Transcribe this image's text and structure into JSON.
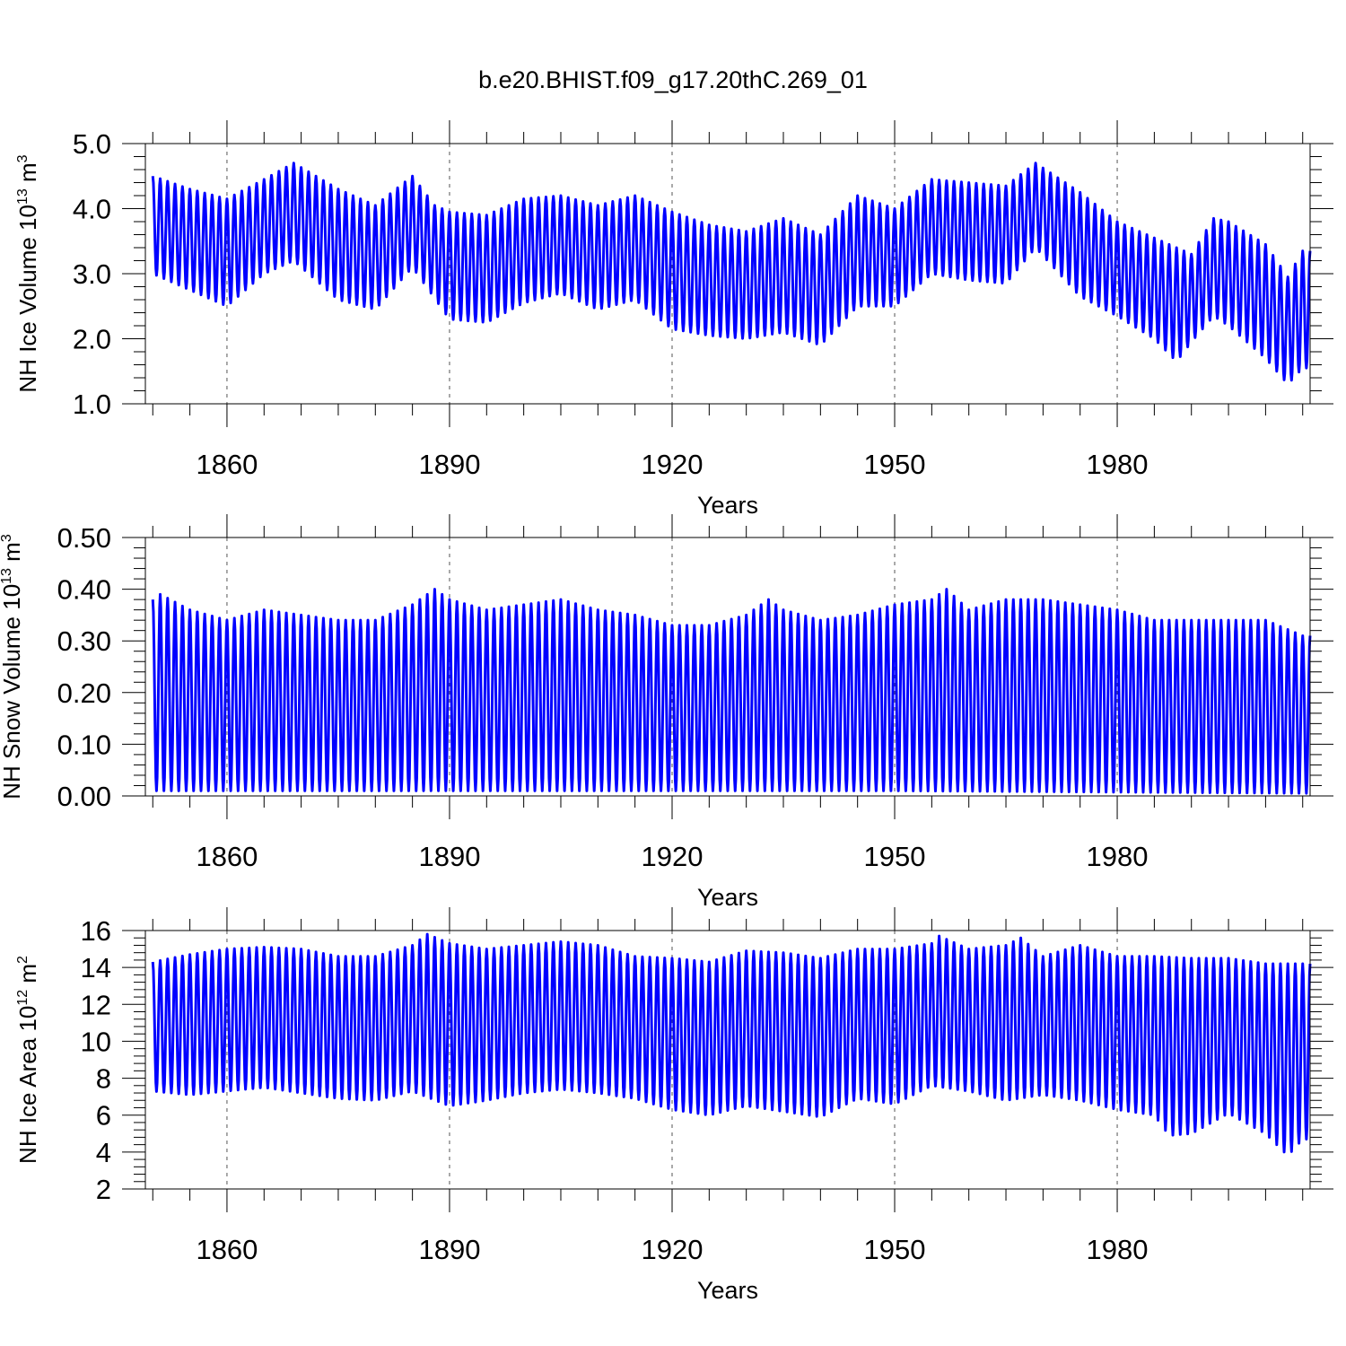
{
  "title": "b.e20.BHIST.f09_g17.20thC.269_01",
  "colors": {
    "series": "#0000ff",
    "axes": "#000000",
    "grid": "#555555",
    "background": "#ffffff"
  },
  "chart_data": [
    {
      "type": "line",
      "x_start": 1850.0,
      "x_end": 2006.0,
      "samples_per_year": 12,
      "xlim": [
        1849.0,
        2006.0
      ],
      "xticks": [
        1860,
        1890,
        1920,
        1950,
        1980
      ],
      "xlabel": "Years",
      "ylabel": {
        "text": "NH Ice Volume 10",
        "exp": "13",
        "unit": " m",
        "unit_exp": "3"
      },
      "ylim": [
        1.0,
        5.0
      ],
      "yticks": [
        "1.0",
        "2.0",
        "3.0",
        "4.0",
        "5.0"
      ],
      "grid": "vertical dashed at major x ticks",
      "annual_maxima": {
        "years": [
          1850,
          1855,
          1860,
          1865,
          1869,
          1875,
          1880,
          1885,
          1888,
          1890,
          1895,
          1900,
          1905,
          1910,
          1915,
          1920,
          1925,
          1930,
          1935,
          1940,
          1945,
          1950,
          1955,
          1960,
          1965,
          1969,
          1975,
          1980,
          1985,
          1990,
          1993,
          1995,
          2000,
          2003,
          2005
        ],
        "values": [
          4.5,
          4.3,
          4.15,
          4.45,
          4.7,
          4.3,
          4.05,
          4.5,
          4.05,
          3.95,
          3.9,
          4.15,
          4.2,
          4.05,
          4.2,
          3.95,
          3.75,
          3.65,
          3.85,
          3.6,
          4.2,
          4.0,
          4.45,
          4.4,
          4.35,
          4.7,
          4.25,
          3.8,
          3.55,
          3.3,
          3.85,
          3.8,
          3.45,
          2.95,
          3.35
        ]
      },
      "annual_minima": {
        "years": [
          1850,
          1855,
          1860,
          1865,
          1869,
          1875,
          1880,
          1885,
          1890,
          1895,
          1900,
          1905,
          1910,
          1915,
          1920,
          1925,
          1930,
          1935,
          1940,
          1945,
          1950,
          1955,
          1960,
          1965,
          1969,
          1975,
          1980,
          1985,
          1988,
          1990,
          1993,
          1995,
          2000,
          2003,
          2005
        ],
        "values": [
          3.0,
          2.75,
          2.5,
          3.0,
          3.2,
          2.6,
          2.45,
          3.1,
          2.3,
          2.25,
          2.55,
          2.7,
          2.45,
          2.6,
          2.15,
          2.05,
          2.0,
          2.1,
          1.9,
          2.5,
          2.5,
          3.0,
          2.9,
          2.85,
          3.4,
          2.65,
          2.35,
          2.0,
          1.65,
          1.95,
          2.35,
          2.2,
          1.7,
          1.3,
          1.55
        ]
      }
    },
    {
      "type": "line",
      "x_start": 1850.0,
      "x_end": 2006.0,
      "samples_per_year": 12,
      "xlim": [
        1849.0,
        2006.0
      ],
      "xticks": [
        1860,
        1890,
        1920,
        1950,
        1980
      ],
      "xlabel": "Years",
      "ylabel": {
        "text": "NH Snow Volume 10",
        "exp": "13",
        "unit": " m",
        "unit_exp": "3"
      },
      "ylim": [
        0.0,
        0.5
      ],
      "yticks": [
        "0.00",
        "0.10",
        "0.20",
        "0.30",
        "0.40",
        "0.50"
      ],
      "grid": "vertical dashed at major x ticks",
      "annual_maxima": {
        "years": [
          1850,
          1851,
          1855,
          1860,
          1865,
          1870,
          1875,
          1880,
          1885,
          1888,
          1890,
          1895,
          1900,
          1905,
          1910,
          1915,
          1920,
          1925,
          1930,
          1933,
          1935,
          1940,
          1945,
          1950,
          1955,
          1957,
          1960,
          1965,
          1970,
          1975,
          1980,
          1985,
          1990,
          1995,
          2000,
          2005
        ],
        "values": [
          0.38,
          0.39,
          0.36,
          0.34,
          0.36,
          0.35,
          0.34,
          0.34,
          0.37,
          0.4,
          0.38,
          0.36,
          0.37,
          0.38,
          0.36,
          0.35,
          0.33,
          0.33,
          0.35,
          0.38,
          0.36,
          0.34,
          0.35,
          0.37,
          0.38,
          0.4,
          0.36,
          0.38,
          0.38,
          0.37,
          0.36,
          0.34,
          0.34,
          0.34,
          0.34,
          0.31
        ]
      },
      "annual_minima": {
        "years": [
          1850,
          1900,
          1950,
          2006
        ],
        "values": [
          0.01,
          0.01,
          0.01,
          0.005
        ]
      }
    },
    {
      "type": "line",
      "x_start": 1850.0,
      "x_end": 2006.0,
      "samples_per_year": 12,
      "xlim": [
        1849.0,
        2006.0
      ],
      "xticks": [
        1860,
        1890,
        1920,
        1950,
        1980
      ],
      "xlabel": "Years",
      "ylabel": {
        "text": "NH Ice Area 10",
        "exp": "12",
        "unit": " m",
        "unit_exp": "2"
      },
      "ylim": [
        2,
        16
      ],
      "yticks": [
        "2",
        "4",
        "6",
        "8",
        "10",
        "12",
        "14",
        "16"
      ],
      "grid": "vertical dashed at major x ticks",
      "annual_maxima": {
        "years": [
          1850,
          1855,
          1860,
          1865,
          1870,
          1875,
          1880,
          1885,
          1887,
          1890,
          1895,
          1900,
          1905,
          1910,
          1915,
          1920,
          1925,
          1930,
          1935,
          1940,
          1945,
          1950,
          1955,
          1956,
          1960,
          1965,
          1967,
          1970,
          1975,
          1980,
          1985,
          1990,
          1995,
          2000,
          2005
        ],
        "values": [
          14.3,
          14.7,
          15.0,
          15.1,
          15.0,
          14.6,
          14.6,
          15.2,
          15.8,
          15.3,
          15.0,
          15.2,
          15.4,
          15.2,
          14.6,
          14.5,
          14.3,
          14.9,
          14.8,
          14.5,
          15.0,
          15.0,
          15.3,
          15.7,
          15.0,
          15.2,
          15.6,
          14.6,
          15.2,
          14.6,
          14.6,
          14.5,
          14.5,
          14.2,
          14.2
        ]
      },
      "annual_minima": {
        "years": [
          1850,
          1855,
          1860,
          1865,
          1870,
          1875,
          1880,
          1885,
          1890,
          1895,
          1900,
          1905,
          1910,
          1915,
          1920,
          1925,
          1930,
          1935,
          1940,
          1945,
          1950,
          1955,
          1960,
          1965,
          1970,
          1975,
          1980,
          1985,
          1987,
          1990,
          1995,
          2000,
          2003,
          2005
        ],
        "values": [
          7.3,
          7.1,
          7.3,
          7.5,
          7.2,
          6.9,
          6.8,
          7.3,
          6.5,
          6.8,
          7.2,
          7.4,
          7.2,
          6.9,
          6.3,
          6.0,
          6.5,
          6.2,
          5.9,
          6.9,
          6.6,
          7.6,
          7.3,
          6.8,
          7.1,
          6.8,
          6.3,
          6.0,
          4.9,
          5.0,
          6.1,
          5.0,
          3.8,
          4.7
        ]
      }
    }
  ]
}
